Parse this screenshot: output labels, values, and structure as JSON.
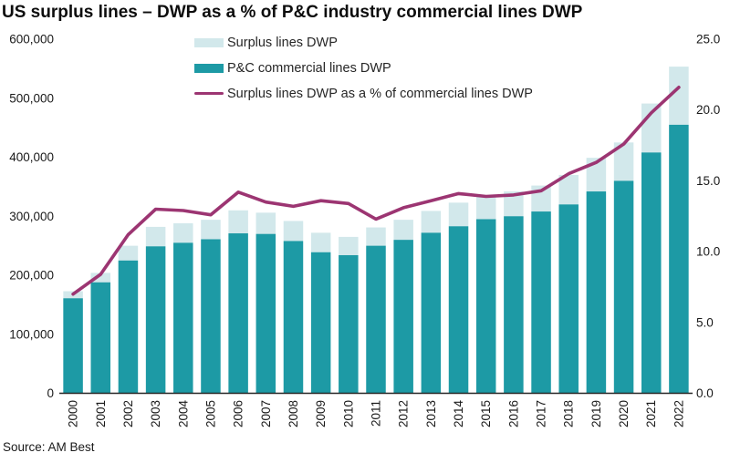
{
  "title": "US surplus lines – DWP as a % of P&C industry commercial lines DWP",
  "source": "Source: AM Best",
  "colors": {
    "surplus": "#d2e8eb",
    "commercial": "#1d9aa5",
    "line": "#9c3572",
    "axis_line": "#262626",
    "tick_text": "#1a1a1a",
    "title_text": "#0d0d0d",
    "background": "#ffffff"
  },
  "legend": {
    "items": [
      {
        "label": "Surplus lines DWP",
        "swatch": "surplus",
        "kind": "box"
      },
      {
        "label": "P&C commercial lines DWP",
        "swatch": "commercial",
        "kind": "box"
      },
      {
        "label": "Surplus lines DWP as a % of commercial lines DWP",
        "swatch": "line",
        "kind": "line"
      }
    ]
  },
  "chart_data": {
    "type": "bar",
    "subtype": "stacked-bars-with-line-overlay",
    "title": "US surplus lines – DWP as a % of P&C industry commercial lines DWP",
    "categories": [
      "2000",
      "2001",
      "2002",
      "2003",
      "2004",
      "2005",
      "2006",
      "2007",
      "2008",
      "2009",
      "2010",
      "2011",
      "2012",
      "2013",
      "2014",
      "2015",
      "2016",
      "2017",
      "2018",
      "2019",
      "2020",
      "2021",
      "2022"
    ],
    "series": [
      {
        "name": "P&C commercial lines DWP",
        "type": "bar",
        "stack": "dwp",
        "axis": "left",
        "values": [
          161000,
          188000,
          225000,
          249000,
          255000,
          261000,
          271000,
          270000,
          258000,
          239000,
          234000,
          250000,
          260000,
          272000,
          283000,
          295000,
          300000,
          308000,
          320000,
          342000,
          360000,
          408000,
          455000
        ]
      },
      {
        "name": "Surplus lines DWP",
        "type": "bar",
        "stack": "dwp",
        "axis": "left",
        "values": [
          12000,
          16000,
          25000,
          33000,
          33000,
          33000,
          39000,
          36000,
          34000,
          33000,
          31000,
          31000,
          34000,
          37000,
          40000,
          41000,
          42000,
          44000,
          50000,
          57000,
          65000,
          83000,
          98500
        ]
      },
      {
        "name": "Surplus lines DWP as a % of commercial lines DWP",
        "type": "line",
        "axis": "right",
        "values": [
          7.0,
          8.4,
          11.2,
          13.0,
          12.9,
          12.6,
          14.2,
          13.5,
          13.2,
          13.6,
          13.4,
          12.3,
          13.1,
          13.6,
          14.1,
          13.9,
          14.0,
          14.3,
          15.5,
          16.3,
          17.6,
          19.8,
          21.6
        ]
      }
    ],
    "left_axis": {
      "min": 0,
      "max": 600000,
      "tick_values": [
        0,
        100000,
        200000,
        300000,
        400000,
        500000,
        600000
      ],
      "tick_labels": [
        "0",
        "100,000",
        "200,000",
        "300,000",
        "400,000",
        "500,000",
        "600,000"
      ]
    },
    "right_axis": {
      "min": 0,
      "max": 25,
      "tick_values": [
        0,
        5,
        10,
        15,
        20,
        25
      ],
      "tick_labels": [
        "0.0",
        "5.0",
        "10.0",
        "15.0",
        "20.0",
        "25.0"
      ]
    },
    "grid": false,
    "legend_position": "top-inside",
    "xlabel": "",
    "ylabel_left": "",
    "ylabel_right": ""
  }
}
